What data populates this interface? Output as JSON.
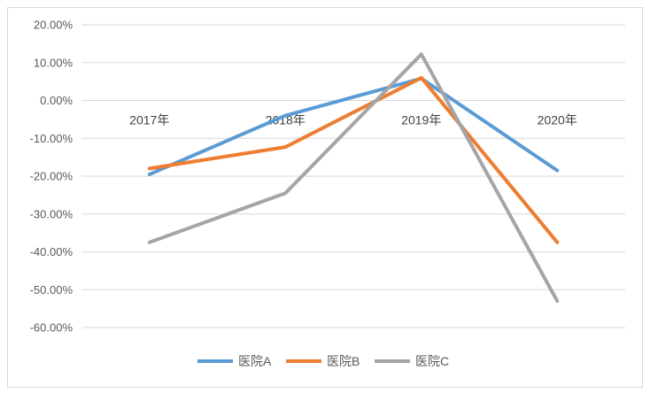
{
  "chart_data": {
    "type": "line",
    "title": "",
    "xlabel": "",
    "ylabel": "",
    "categories": [
      "2017年",
      "2018年",
      "2019年",
      "2020年"
    ],
    "ylim": [
      -60,
      20
    ],
    "yticks": [
      20,
      10,
      0,
      -10,
      -20,
      -30,
      -40,
      -50,
      -60
    ],
    "ytick_labels": [
      "20.00%",
      "10.00%",
      "0.00%",
      "-10.00%",
      "-20.00%",
      "-30.00%",
      "-40.00%",
      "-50.00%",
      "-60.00%"
    ],
    "grid": true,
    "legend_position": "bottom",
    "series": [
      {
        "name": "医院A",
        "color": "#5b9bd5",
        "values": [
          -19.5,
          -4,
          5.8,
          -18.5
        ]
      },
      {
        "name": "医院B",
        "color": "#ed7d31",
        "values": [
          -18,
          -12.3,
          6,
          -37.5
        ]
      },
      {
        "name": "医院C",
        "color": "#a5a5a5",
        "values": [
          -37.5,
          -24.5,
          12.2,
          -53
        ]
      }
    ]
  }
}
